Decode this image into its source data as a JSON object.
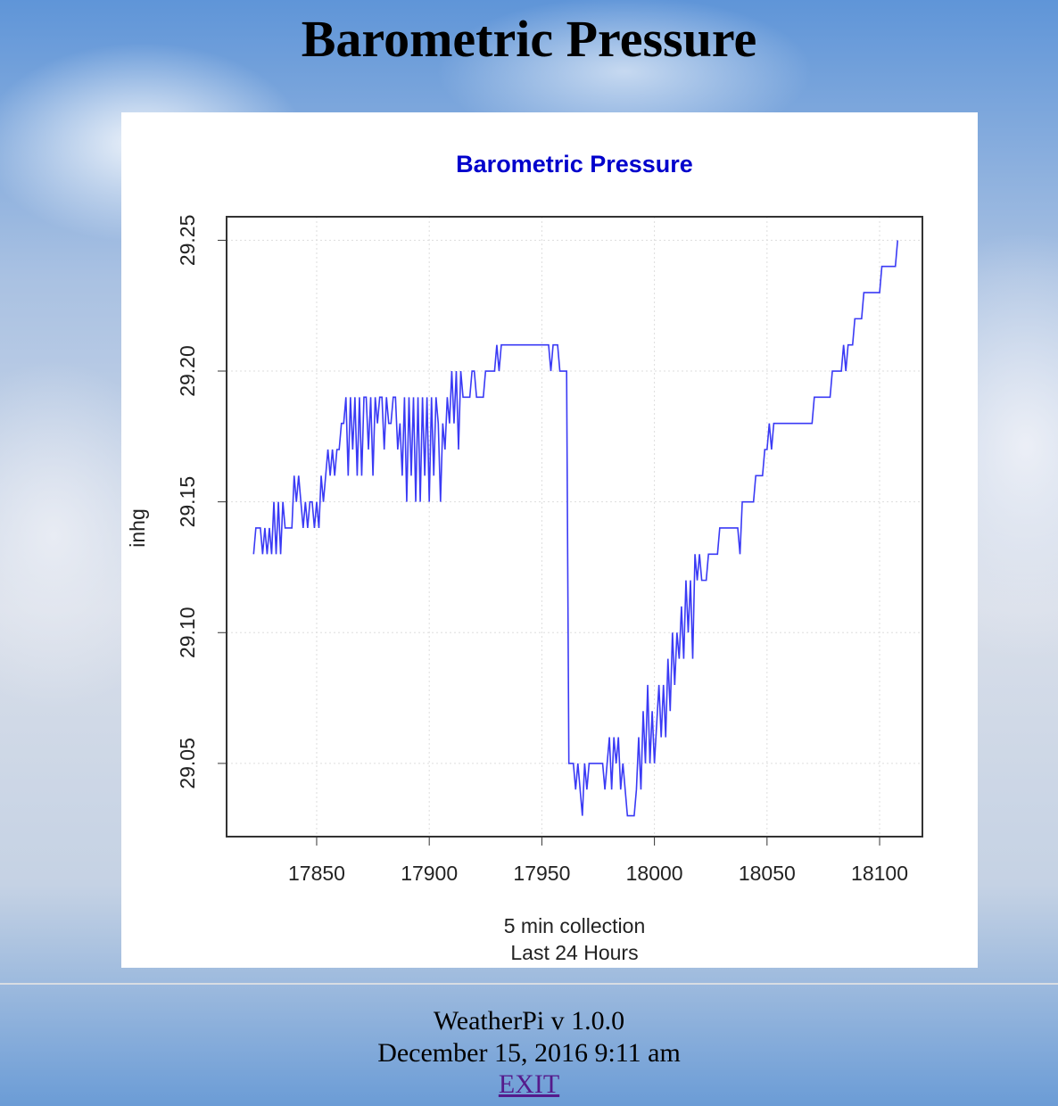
{
  "page": {
    "heading": "Barometric Pressure",
    "version": "WeatherPi v 1.0.0",
    "timestamp": "December 15, 2016 9:11 am",
    "link": "EXIT"
  },
  "chart_data": {
    "type": "line",
    "title": "Barometric Pressure",
    "x_label": [
      "5 min collection",
      "Last 24 Hours"
    ],
    "y_label": "inhg",
    "xlim": [
      17810,
      18119
    ],
    "xticks": [
      17850,
      17900,
      17950,
      18000,
      18050,
      18100
    ],
    "ylim": [
      29.022,
      29.259
    ],
    "yticks": [
      29.05,
      {
        "value": 29.1,
        "label": "29.10"
      },
      29.15,
      {
        "value": 29.2,
        "label": "29.20"
      },
      29.25
    ],
    "grid": true,
    "x": [
      17822,
      17823,
      17825,
      17826,
      17827,
      17828,
      17829,
      17830,
      17831,
      17832,
      17833,
      17834,
      17835,
      17836,
      17839,
      17840,
      17841,
      17842,
      17843,
      17844,
      17845,
      17846,
      17847,
      17848,
      17849,
      17850,
      17851,
      17852,
      17853,
      17854,
      17855,
      17856,
      17857,
      17858,
      17859,
      17860,
      17861,
      17862,
      17863,
      17864,
      17865,
      17866,
      17867,
      17868,
      17869,
      17870,
      17871,
      17872,
      17873,
      17874,
      17875,
      17876,
      17877,
      17878,
      17879,
      17880,
      17881,
      17882,
      17883,
      17884,
      17885,
      17886,
      17887,
      17888,
      17889,
      17890,
      17891,
      17892,
      17893,
      17894,
      17895,
      17896,
      17897,
      17898,
      17899,
      17900,
      17901,
      17902,
      17903,
      17904,
      17905,
      17906,
      17907,
      17908,
      17909,
      17910,
      17911,
      17912,
      17913,
      17914,
      17915,
      17918,
      17919,
      17920,
      17921,
      17924,
      17925,
      17929,
      17930,
      17931,
      17932,
      17953,
      17954,
      17955,
      17957,
      17958,
      17961,
      17962,
      17964,
      17965,
      17966,
      17967,
      17968,
      17969,
      17970,
      17971,
      17977,
      17978,
      17979,
      17980,
      17981,
      17982,
      17983,
      17984,
      17985,
      17986,
      17987,
      17988,
      17991,
      17992,
      17993,
      17994,
      17995,
      17996,
      17997,
      17998,
      17999,
      18000,
      18002,
      18003,
      18004,
      18005,
      18006,
      18007,
      18008,
      18009,
      18010,
      18011,
      18012,
      18013,
      18014,
      18015,
      18016,
      18017,
      18018,
      18019,
      18020,
      18021,
      18023,
      18024,
      18028,
      18029,
      18037,
      18038,
      18039,
      18044,
      18045,
      18048,
      18049,
      18050,
      18051,
      18052,
      18053,
      18070,
      18071,
      18078,
      18079,
      18083,
      18084,
      18085,
      18086,
      18088,
      18089,
      18092,
      18093,
      18100,
      18101,
      18107,
      18108
    ],
    "series": [
      {
        "name": "inhg",
        "color": "#3a3af5",
        "values": [
          29.13,
          29.14,
          29.14,
          29.13,
          29.14,
          29.13,
          29.14,
          29.13,
          29.15,
          29.13,
          29.15,
          29.13,
          29.15,
          29.14,
          29.14,
          29.16,
          29.15,
          29.16,
          29.15,
          29.14,
          29.15,
          29.14,
          29.15,
          29.15,
          29.14,
          29.15,
          29.14,
          29.16,
          29.15,
          29.16,
          29.17,
          29.16,
          29.17,
          29.16,
          29.17,
          29.17,
          29.18,
          29.18,
          29.19,
          29.16,
          29.19,
          29.17,
          29.19,
          29.16,
          29.19,
          29.16,
          29.19,
          29.19,
          29.17,
          29.19,
          29.16,
          29.19,
          29.18,
          29.19,
          29.19,
          29.17,
          29.19,
          29.18,
          29.18,
          29.19,
          29.19,
          29.17,
          29.18,
          29.16,
          29.19,
          29.15,
          29.19,
          29.16,
          29.19,
          29.15,
          29.19,
          29.15,
          29.19,
          29.16,
          29.19,
          29.15,
          29.19,
          29.16,
          29.19,
          29.18,
          29.15,
          29.18,
          29.17,
          29.19,
          29.18,
          29.2,
          29.18,
          29.2,
          29.17,
          29.2,
          29.19,
          29.19,
          29.2,
          29.2,
          29.19,
          29.19,
          29.2,
          29.2,
          29.21,
          29.2,
          29.21,
          29.21,
          29.2,
          29.21,
          29.21,
          29.2,
          29.2,
          29.05,
          29.05,
          29.04,
          29.05,
          29.04,
          29.03,
          29.05,
          29.04,
          29.05,
          29.05,
          29.04,
          29.05,
          29.06,
          29.04,
          29.06,
          29.05,
          29.06,
          29.04,
          29.05,
          29.04,
          29.03,
          29.03,
          29.04,
          29.06,
          29.04,
          29.07,
          29.05,
          29.08,
          29.05,
          29.07,
          29.05,
          29.08,
          29.06,
          29.08,
          29.06,
          29.09,
          29.07,
          29.1,
          29.08,
          29.1,
          29.09,
          29.11,
          29.09,
          29.12,
          29.1,
          29.12,
          29.09,
          29.13,
          29.12,
          29.13,
          29.12,
          29.12,
          29.13,
          29.13,
          29.14,
          29.14,
          29.13,
          29.15,
          29.15,
          29.16,
          29.16,
          29.17,
          29.17,
          29.18,
          29.17,
          29.18,
          29.18,
          29.19,
          29.19,
          29.2,
          29.2,
          29.21,
          29.2,
          29.21,
          29.21,
          29.22,
          29.22,
          29.23,
          29.23,
          29.24,
          29.24,
          29.25
        ]
      }
    ]
  }
}
